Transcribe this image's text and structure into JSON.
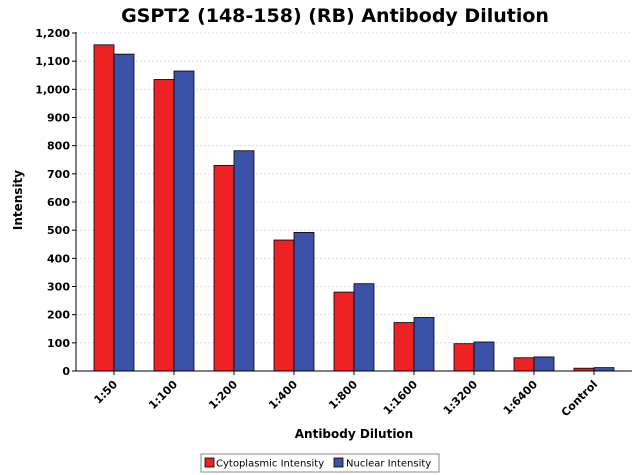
{
  "chart_data": {
    "type": "bar",
    "title": "GSPT2 (148-158) (RB) Antibody Dilution",
    "xlabel": "Antibody Dilution",
    "ylabel": "Intensity",
    "ylim": [
      0,
      1200
    ],
    "yticks": [
      0,
      100,
      200,
      300,
      400,
      500,
      600,
      700,
      800,
      900,
      1000,
      1100,
      1200
    ],
    "ytick_labels": [
      "0",
      "100",
      "200",
      "300",
      "400",
      "500",
      "600",
      "700",
      "800",
      "900",
      "1,000",
      "1,100",
      "1,200"
    ],
    "grid": true,
    "legend_position": "bottom",
    "categories": [
      "1:50",
      "1:100",
      "1:200",
      "1:400",
      "1:800",
      "1:1600",
      "1:3200",
      "1:6400",
      "Control"
    ],
    "series": [
      {
        "name": "Cytoplasmic Intensity",
        "color": "#ee2222",
        "values": [
          1158,
          1035,
          730,
          465,
          280,
          172,
          97,
          47,
          10
        ]
      },
      {
        "name": "Nuclear Intensity",
        "color": "#3b52a8",
        "values": [
          1125,
          1065,
          782,
          492,
          310,
          190,
          103,
          50,
          12
        ]
      }
    ]
  }
}
